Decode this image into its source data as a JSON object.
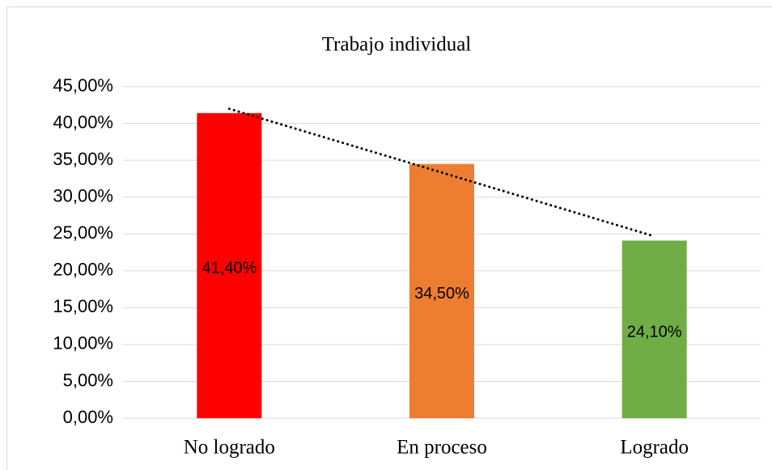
{
  "chart_data": {
    "type": "bar",
    "title": "Trabajo individual",
    "categories": [
      "No logrado",
      "En proceso",
      "Logrado"
    ],
    "values": [
      41.4,
      34.5,
      24.1
    ],
    "value_labels": [
      "41,40%",
      "34,50%",
      "24,10%"
    ],
    "colors": [
      "#ff0000",
      "#ed7d31",
      "#70ad47"
    ],
    "ylim": [
      0,
      45
    ],
    "yticks": [
      {
        "value": 0,
        "label": "0,00%"
      },
      {
        "value": 5,
        "label": "5,00%"
      },
      {
        "value": 10,
        "label": "10,00%"
      },
      {
        "value": 15,
        "label": "15,00%"
      },
      {
        "value": 20,
        "label": "20,00%"
      },
      {
        "value": 25,
        "label": "25,00%"
      },
      {
        "value": 30,
        "label": "30,00%"
      },
      {
        "value": 35,
        "label": "35,00%"
      },
      {
        "value": 40,
        "label": "40,00%"
      },
      {
        "value": 45,
        "label": "45,00%"
      }
    ],
    "grid": true,
    "trendline": "linear"
  }
}
